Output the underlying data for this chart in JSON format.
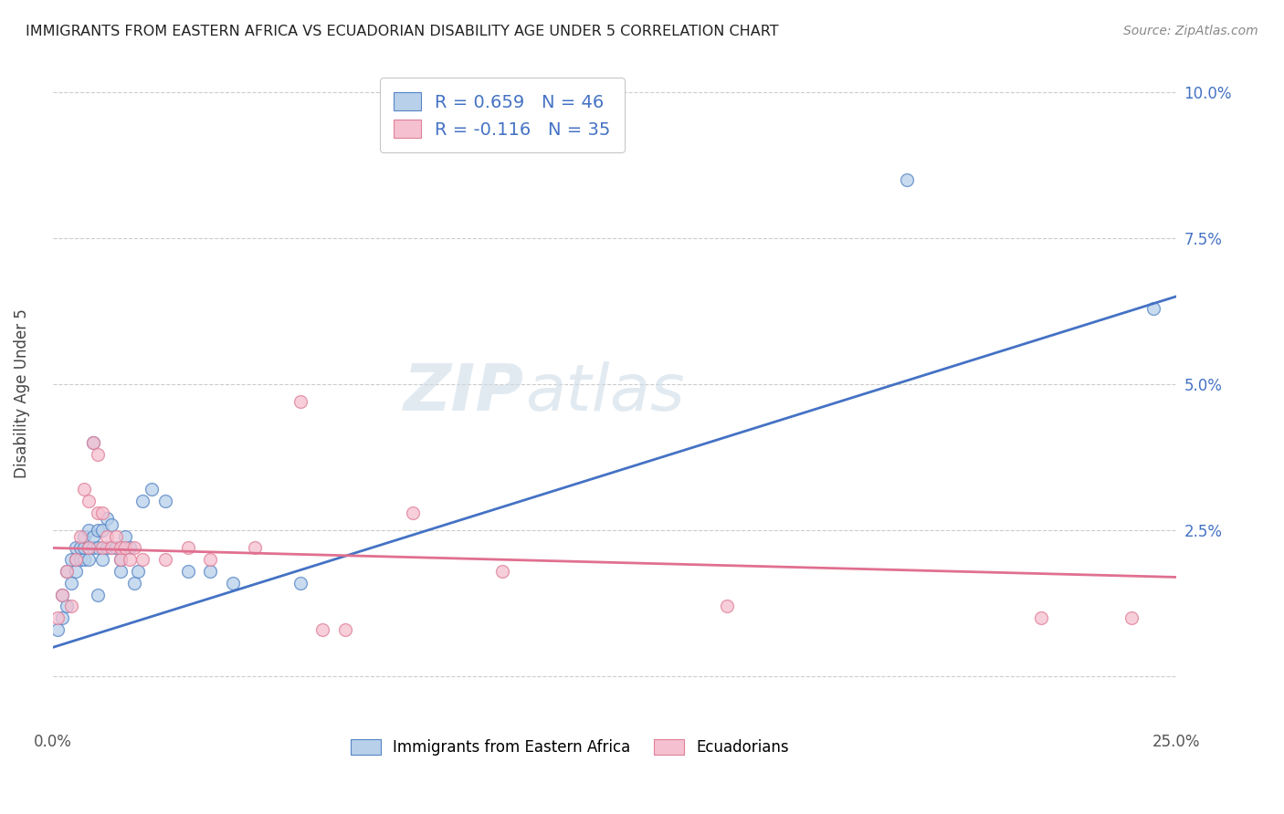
{
  "title": "IMMIGRANTS FROM EASTERN AFRICA VS ECUADORIAN DISABILITY AGE UNDER 5 CORRELATION CHART",
  "source": "Source: ZipAtlas.com",
  "ylabel": "Disability Age Under 5",
  "xmin": 0.0,
  "xmax": 0.25,
  "ymin": -0.008,
  "ymax": 0.105,
  "yticks": [
    0.0,
    0.025,
    0.05,
    0.075,
    0.1
  ],
  "ytick_labels": [
    "",
    "2.5%",
    "5.0%",
    "7.5%",
    "10.0%"
  ],
  "xticks": [
    0.0,
    0.05,
    0.1,
    0.15,
    0.2,
    0.25
  ],
  "xtick_labels": [
    "0.0%",
    "",
    "",
    "",
    "",
    "25.0%"
  ],
  "r_blue": 0.659,
  "n_blue": 46,
  "r_pink": -0.116,
  "n_pink": 35,
  "blue_fill_color": "#b8d0ea",
  "pink_fill_color": "#f5c0d0",
  "blue_edge_color": "#5585c5",
  "pink_edge_color": "#e08098",
  "blue_line_color": "#4472c4",
  "pink_line_color": "#e07090",
  "legend_text_color": "#4472c4",
  "background_color": "#ffffff",
  "grid_color": "#cccccc",
  "blue_scatter": [
    [
      0.001,
      0.008
    ],
    [
      0.002,
      0.01
    ],
    [
      0.002,
      0.014
    ],
    [
      0.003,
      0.012
    ],
    [
      0.003,
      0.018
    ],
    [
      0.004,
      0.016
    ],
    [
      0.004,
      0.02
    ],
    [
      0.005,
      0.018
    ],
    [
      0.005,
      0.02
    ],
    [
      0.005,
      0.022
    ],
    [
      0.006,
      0.02
    ],
    [
      0.006,
      0.022
    ],
    [
      0.007,
      0.02
    ],
    [
      0.007,
      0.022
    ],
    [
      0.007,
      0.024
    ],
    [
      0.008,
      0.02
    ],
    [
      0.008,
      0.022
    ],
    [
      0.008,
      0.025
    ],
    [
      0.009,
      0.022
    ],
    [
      0.009,
      0.024
    ],
    [
      0.009,
      0.04
    ],
    [
      0.01,
      0.022
    ],
    [
      0.01,
      0.025
    ],
    [
      0.011,
      0.02
    ],
    [
      0.011,
      0.025
    ],
    [
      0.012,
      0.022
    ],
    [
      0.012,
      0.027
    ],
    [
      0.013,
      0.022
    ],
    [
      0.013,
      0.026
    ],
    [
      0.014,
      0.022
    ],
    [
      0.015,
      0.018
    ],
    [
      0.015,
      0.02
    ],
    [
      0.016,
      0.024
    ],
    [
      0.017,
      0.022
    ],
    [
      0.018,
      0.016
    ],
    [
      0.019,
      0.018
    ],
    [
      0.02,
      0.03
    ],
    [
      0.022,
      0.032
    ],
    [
      0.025,
      0.03
    ],
    [
      0.03,
      0.018
    ],
    [
      0.035,
      0.018
    ],
    [
      0.04,
      0.016
    ],
    [
      0.055,
      0.016
    ],
    [
      0.19,
      0.085
    ],
    [
      0.245,
      0.063
    ],
    [
      0.01,
      0.014
    ]
  ],
  "pink_scatter": [
    [
      0.001,
      0.01
    ],
    [
      0.002,
      0.014
    ],
    [
      0.003,
      0.018
    ],
    [
      0.004,
      0.012
    ],
    [
      0.005,
      0.02
    ],
    [
      0.006,
      0.024
    ],
    [
      0.007,
      0.032
    ],
    [
      0.008,
      0.022
    ],
    [
      0.008,
      0.03
    ],
    [
      0.009,
      0.04
    ],
    [
      0.01,
      0.038
    ],
    [
      0.01,
      0.028
    ],
    [
      0.011,
      0.022
    ],
    [
      0.011,
      0.028
    ],
    [
      0.012,
      0.024
    ],
    [
      0.013,
      0.022
    ],
    [
      0.014,
      0.024
    ],
    [
      0.015,
      0.02
    ],
    [
      0.015,
      0.022
    ],
    [
      0.016,
      0.022
    ],
    [
      0.017,
      0.02
    ],
    [
      0.018,
      0.022
    ],
    [
      0.02,
      0.02
    ],
    [
      0.025,
      0.02
    ],
    [
      0.03,
      0.022
    ],
    [
      0.035,
      0.02
    ],
    [
      0.045,
      0.022
    ],
    [
      0.055,
      0.047
    ],
    [
      0.06,
      0.008
    ],
    [
      0.065,
      0.008
    ],
    [
      0.08,
      0.028
    ],
    [
      0.1,
      0.018
    ],
    [
      0.15,
      0.012
    ],
    [
      0.22,
      0.01
    ],
    [
      0.24,
      0.01
    ]
  ],
  "blue_line_x": [
    0.0,
    0.25
  ],
  "blue_line_y": [
    0.005,
    0.065
  ],
  "pink_line_x": [
    0.0,
    0.25
  ],
  "pink_line_y": [
    0.022,
    0.017
  ]
}
